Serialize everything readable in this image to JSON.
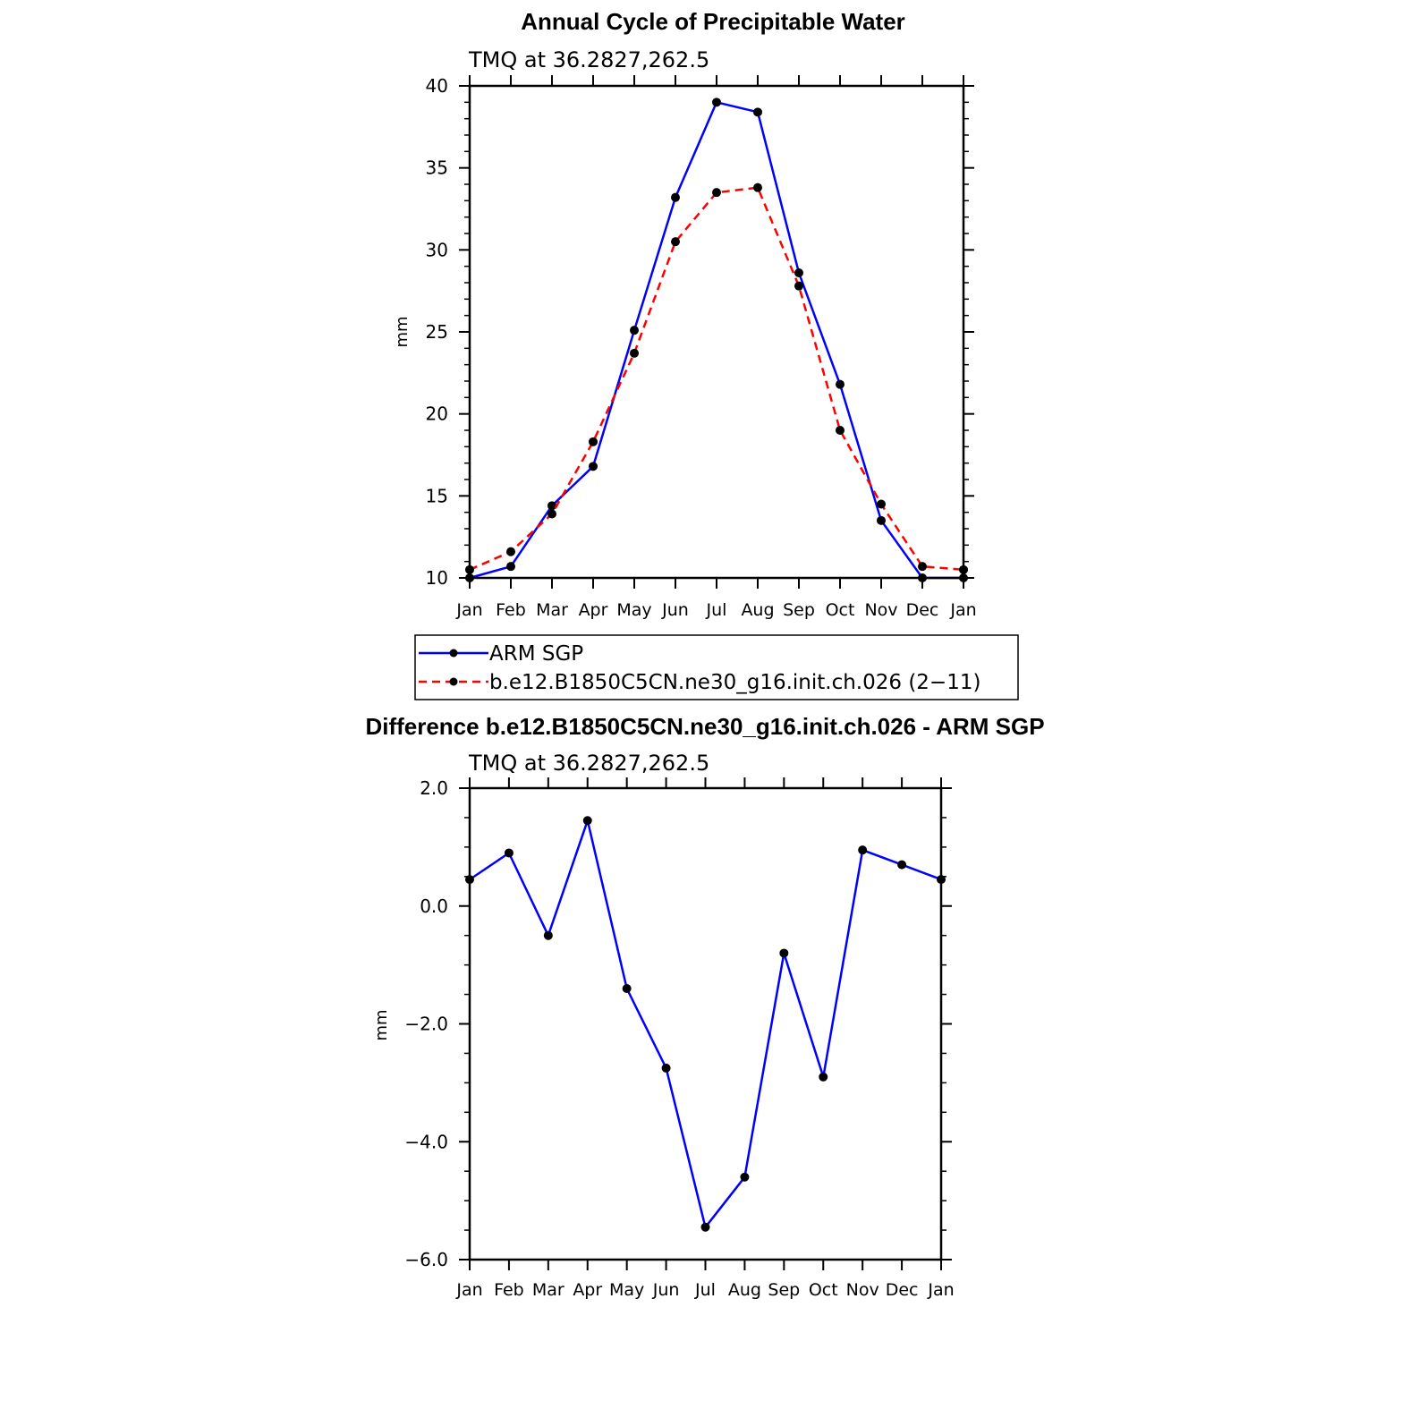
{
  "chart_data": [
    {
      "type": "line",
      "title": "Annual Cycle of Precipitable Water",
      "subtitle": "TMQ at 36.2827,262.5",
      "ylabel": "mm",
      "xlabel": "",
      "categories": [
        "Jan",
        "Feb",
        "Mar",
        "Apr",
        "May",
        "Jun",
        "Jul",
        "Aug",
        "Sep",
        "Oct",
        "Nov",
        "Dec",
        "Jan"
      ],
      "ylim": [
        10,
        40
      ],
      "yticks": [
        10,
        15,
        20,
        25,
        30,
        35,
        40
      ],
      "ytick_labels": [
        "10",
        "15",
        "20",
        "25",
        "30",
        "35",
        "40"
      ],
      "series": [
        {
          "name": "ARM SGP",
          "color": "#0000ff",
          "style": "solid",
          "values": [
            10.0,
            10.7,
            14.4,
            16.8,
            25.1,
            33.2,
            39.0,
            38.4,
            28.6,
            21.8,
            13.5,
            10.0,
            10.0
          ]
        },
        {
          "name": "b.e12.B1850C5CN.ne30_g16.init.ch.026 (2−11)",
          "color": "#ff0000",
          "style": "dashed",
          "values": [
            10.5,
            11.6,
            13.9,
            18.3,
            23.7,
            30.5,
            33.5,
            33.8,
            27.8,
            19.0,
            14.5,
            10.7,
            10.5
          ]
        }
      ],
      "legend": "below"
    },
    {
      "type": "line",
      "title": "Difference b.e12.B1850C5CN.ne30_g16.init.ch.026 - ARM SGP",
      "subtitle": "TMQ at 36.2827,262.5",
      "ylabel": "mm",
      "xlabel": "",
      "categories": [
        "Jan",
        "Feb",
        "Mar",
        "Apr",
        "May",
        "Jun",
        "Jul",
        "Aug",
        "Sep",
        "Oct",
        "Nov",
        "Dec",
        "Jan"
      ],
      "ylim": [
        -6,
        2
      ],
      "yticks": [
        -6,
        -4,
        -2,
        0,
        2
      ],
      "ytick_labels": [
        "−6.0",
        "−4.0",
        "−2.0",
        "0.0",
        "2.0"
      ],
      "series": [
        {
          "name": "Difference",
          "color": "#0000ff",
          "style": "solid",
          "values": [
            0.45,
            0.9,
            -0.5,
            1.45,
            -1.4,
            -2.75,
            -5.45,
            -4.6,
            -0.8,
            -2.9,
            0.95,
            0.7,
            0.45
          ]
        }
      ]
    }
  ]
}
